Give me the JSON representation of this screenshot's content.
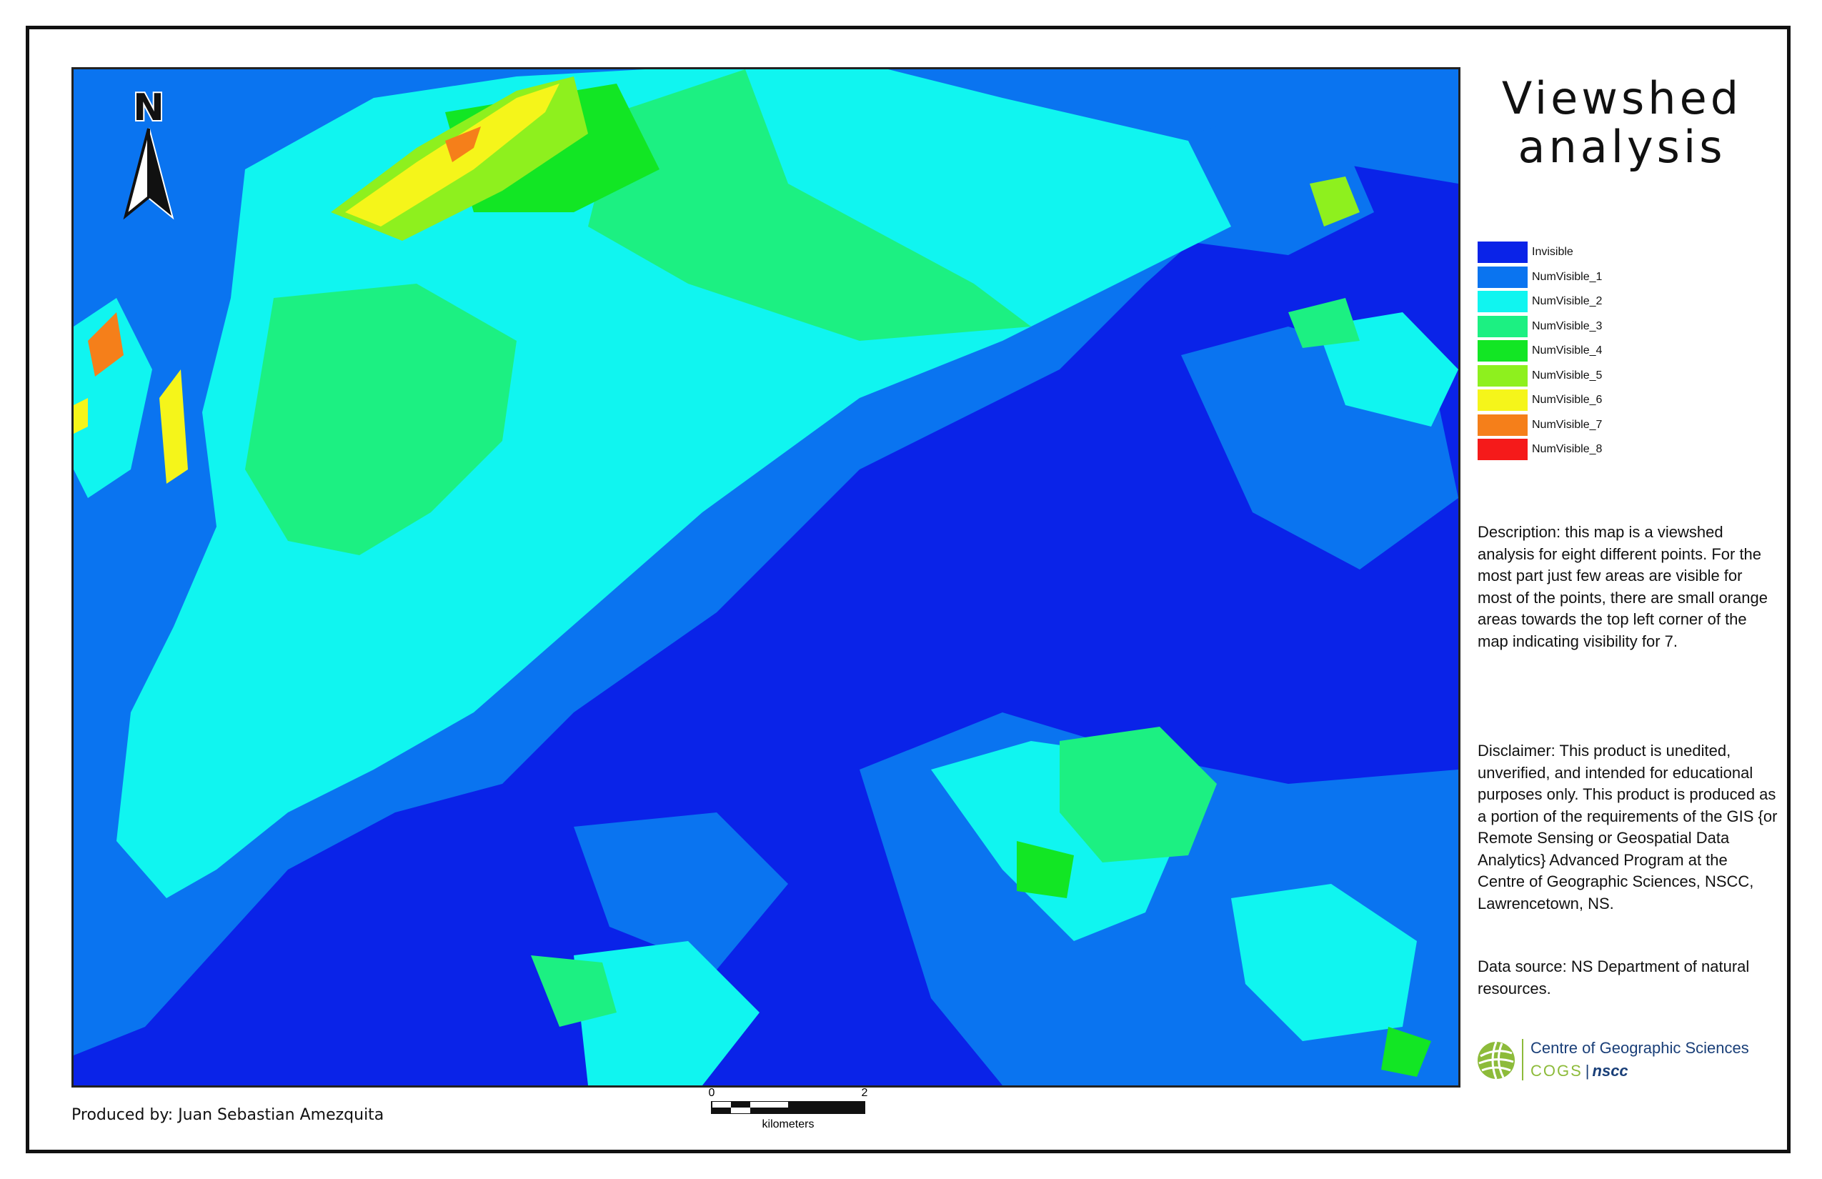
{
  "title": "Viewshed analysis",
  "legend": [
    {
      "label": "Invisible",
      "color": "#0a23e8"
    },
    {
      "label": "NumVisible_1",
      "color": "#0a74f0"
    },
    {
      "label": "NumVisible_2",
      "color": "#10f5f0"
    },
    {
      "label": "NumVisible_3",
      "color": "#1cf082"
    },
    {
      "label": "NumVisible_4",
      "color": "#12e624"
    },
    {
      "label": "NumVisible_5",
      "color": "#8ef01e"
    },
    {
      "label": "NumVisible_6",
      "color": "#f5f51a"
    },
    {
      "label": "NumVisible_7",
      "color": "#f57f1a"
    },
    {
      "label": "NumVisible_8",
      "color": "#f51a1a"
    }
  ],
  "description": "Description: this map is a viewshed analysis for eight different points. For the most part just few areas are visible for most of the points, there are small orange areas towards the top left corner of the map indicating visibility for 7.",
  "disclaimer": "Disclaimer: This product is unedited, unverified, and intended for educational purposes only. This product is produced as a portion of the requirements of the GIS {or Remote Sensing or Geospatial Data Analytics} Advanced Program at the Centre of Geographic Sciences, NSCC, Lawrencetown, NS.",
  "data_source": "Data source: NS Department of natural resources.",
  "producer": "Produced by: Juan Sebastian Amezquita",
  "north_arrow": {
    "letter": "N",
    "icon": "north-arrow-icon"
  },
  "scale": {
    "start": "0",
    "end": "2",
    "unit": "kilometers"
  },
  "logo": {
    "title": "Centre of Geographic Sciences",
    "cogs": "COGS",
    "separator": "|",
    "nscc": "nscc"
  }
}
